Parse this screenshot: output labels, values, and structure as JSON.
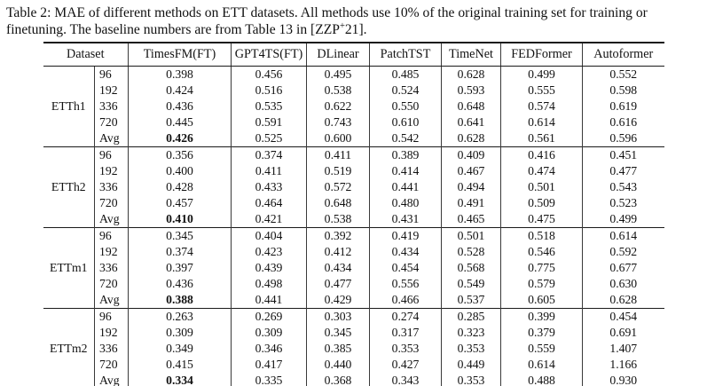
{
  "colors": {
    "background": "#ffffff",
    "text": "#111111",
    "rule_heavy": "#1a1a1a",
    "rule_light": "#3a3a3a"
  },
  "caption": {
    "part1": "Table 2: MAE of different methods on ETT datasets. All methods use 10% of the original training set for training or finetuning. The baseline numbers are from Table 13 in [ZZP",
    "sup": "+",
    "part2": "21]."
  },
  "table": {
    "dataset_header": "Dataset",
    "method_headers": [
      "TimesFM(FT)",
      "GPT4TS(FT)",
      "DLinear",
      "PatchTST",
      "TimeNet",
      "FEDFormer",
      "Autoformer"
    ],
    "groups": [
      {
        "name": "ETTh1",
        "rows": [
          {
            "horizon": "96",
            "values": [
              "0.398",
              "0.456",
              "0.495",
              "0.485",
              "0.628",
              "0.499",
              "0.552"
            ],
            "bold": []
          },
          {
            "horizon": "192",
            "values": [
              "0.424",
              "0.516",
              "0.538",
              "0.524",
              "0.593",
              "0.555",
              "0.598"
            ],
            "bold": []
          },
          {
            "horizon": "336",
            "values": [
              "0.436",
              "0.535",
              "0.622",
              "0.550",
              "0.648",
              "0.574",
              "0.619"
            ],
            "bold": []
          },
          {
            "horizon": "720",
            "values": [
              "0.445",
              "0.591",
              "0.743",
              "0.610",
              "0.641",
              "0.614",
              "0.616"
            ],
            "bold": []
          },
          {
            "horizon": "Avg",
            "values": [
              "0.426",
              "0.525",
              "0.600",
              "0.542",
              "0.628",
              "0.561",
              "0.596"
            ],
            "bold": [
              0
            ]
          }
        ]
      },
      {
        "name": "ETTh2",
        "rows": [
          {
            "horizon": "96",
            "values": [
              "0.356",
              "0.374",
              "0.411",
              "0.389",
              "0.409",
              "0.416",
              "0.451"
            ],
            "bold": []
          },
          {
            "horizon": "192",
            "values": [
              "0.400",
              "0.411",
              "0.519",
              "0.414",
              "0.467",
              "0.474",
              "0.477"
            ],
            "bold": []
          },
          {
            "horizon": "336",
            "values": [
              "0.428",
              "0.433",
              "0.572",
              "0.441",
              "0.494",
              "0.501",
              "0.543"
            ],
            "bold": []
          },
          {
            "horizon": "720",
            "values": [
              "0.457",
              "0.464",
              "0.648",
              "0.480",
              "0.491",
              "0.509",
              "0.523"
            ],
            "bold": []
          },
          {
            "horizon": "Avg",
            "values": [
              "0.410",
              "0.421",
              "0.538",
              "0.431",
              "0.465",
              "0.475",
              "0.499"
            ],
            "bold": [
              0
            ]
          }
        ]
      },
      {
        "name": "ETTm1",
        "rows": [
          {
            "horizon": "96",
            "values": [
              "0.345",
              "0.404",
              "0.392",
              "0.419",
              "0.501",
              "0.518",
              "0.614"
            ],
            "bold": []
          },
          {
            "horizon": "192",
            "values": [
              "0.374",
              "0.423",
              "0.412",
              "0.434",
              "0.528",
              "0.546",
              "0.592"
            ],
            "bold": []
          },
          {
            "horizon": "336",
            "values": [
              "0.397",
              "0.439",
              "0.434",
              "0.454",
              "0.568",
              "0.775",
              "0.677"
            ],
            "bold": []
          },
          {
            "horizon": "720",
            "values": [
              "0.436",
              "0.498",
              "0.477",
              "0.556",
              "0.549",
              "0.579",
              "0.630"
            ],
            "bold": []
          },
          {
            "horizon": "Avg",
            "values": [
              "0.388",
              "0.441",
              "0.429",
              "0.466",
              "0.537",
              "0.605",
              "0.628"
            ],
            "bold": [
              0
            ]
          }
        ]
      },
      {
        "name": "ETTm2",
        "rows": [
          {
            "horizon": "96",
            "values": [
              "0.263",
              "0.269",
              "0.303",
              "0.274",
              "0.285",
              "0.399",
              "0.454"
            ],
            "bold": []
          },
          {
            "horizon": "192",
            "values": [
              "0.309",
              "0.309",
              "0.345",
              "0.317",
              "0.323",
              "0.379",
              "0.691"
            ],
            "bold": []
          },
          {
            "horizon": "336",
            "values": [
              "0.349",
              "0.346",
              "0.385",
              "0.353",
              "0.353",
              "0.559",
              "1.407"
            ],
            "bold": []
          },
          {
            "horizon": "720",
            "values": [
              "0.415",
              "0.417",
              "0.440",
              "0.427",
              "0.449",
              "0.614",
              "1.166"
            ],
            "bold": []
          },
          {
            "horizon": "Avg",
            "values": [
              "0.334",
              "0.335",
              "0.368",
              "0.343",
              "0.353",
              "0.488",
              "0.930"
            ],
            "bold": [
              0
            ]
          }
        ]
      }
    ]
  }
}
